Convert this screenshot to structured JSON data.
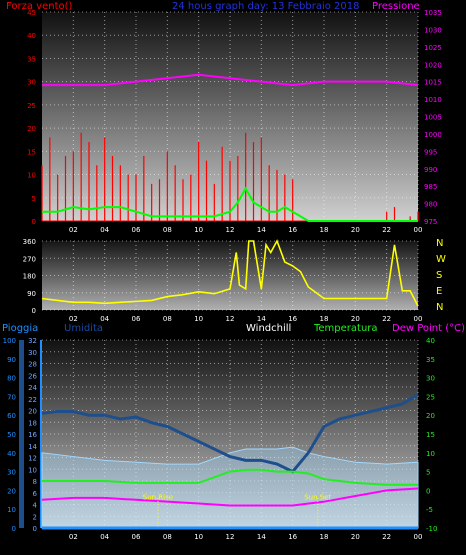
{
  "header": {
    "left_label": "Forza vento()",
    "title": "24 hous graph day: 13 Febbraio 2018",
    "right_label": "Pressione"
  },
  "dir_panel": {
    "compass": [
      "N",
      "W",
      "S",
      "E",
      "N"
    ]
  },
  "bottom_header": {
    "pioggia": "Pioggia",
    "umidita": "Umidita",
    "windchill": "Windchill",
    "temperatura": "Temperatura",
    "dewpoint": "Dew Point (°C)"
  },
  "annotations": {
    "sunrise": "Sun Rise",
    "sunset": "Sun Set"
  },
  "colors": {
    "wind_gust": "#ff0000",
    "wind_avg": "#00ff00",
    "pressure": "#ff00ff",
    "direction": "#ffff00",
    "windchill": "#1e4e8c",
    "temperature": "#22ee22",
    "humidity": "#a0d8ff",
    "dewpoint": "#ff00ff",
    "rain": "#1e90ff"
  },
  "chart_data": [
    {
      "type": "line",
      "title": "24 hous graph day: 13 Febbraio 2018",
      "x_ticks": [
        "02",
        "04",
        "06",
        "08",
        "10",
        "12",
        "14",
        "16",
        "18",
        "20",
        "22",
        "00"
      ],
      "y_left": {
        "label": "Forza vento()",
        "ticks": [
          0,
          5,
          10,
          15,
          20,
          25,
          30,
          35,
          40,
          45
        ],
        "lim": [
          0,
          45
        ]
      },
      "y_right": {
        "label": "Pressione",
        "ticks": [
          975,
          980,
          985,
          990,
          995,
          1000,
          1005,
          1010,
          1015,
          1020,
          1025,
          1030,
          1035
        ],
        "lim": [
          975,
          1035
        ]
      },
      "grid": true,
      "series": [
        {
          "name": "gust",
          "axis": "left",
          "style": "bars",
          "x": [
            0,
            0.5,
            1,
            1.5,
            2,
            2.5,
            3,
            3.5,
            4,
            4.5,
            5,
            5.5,
            6,
            6.5,
            7,
            7.5,
            8,
            8.5,
            9,
            9.5,
            10,
            10.5,
            11,
            11.5,
            12,
            12.5,
            13,
            13.5,
            14,
            14.5,
            15,
            15.5,
            16,
            16.5,
            17,
            18,
            19,
            20,
            21,
            22,
            22.5,
            23,
            23.5,
            24
          ],
          "values": [
            12,
            18,
            10,
            14,
            15,
            19,
            17,
            12,
            18,
            14,
            12,
            10,
            10,
            14,
            8,
            9,
            15,
            12,
            9,
            10,
            17,
            13,
            8,
            16,
            13,
            14,
            19,
            17,
            18,
            12,
            11,
            10,
            9,
            0,
            0,
            0,
            0,
            0,
            0,
            2,
            3,
            0,
            1,
            2
          ]
        },
        {
          "name": "avg",
          "axis": "left",
          "style": "line",
          "x": [
            0,
            1,
            2,
            3,
            4,
            5,
            6,
            7,
            8,
            9,
            10,
            11,
            12,
            12.5,
            13,
            13.5,
            14,
            14.5,
            15,
            15.5,
            16,
            17,
            18,
            19,
            20,
            21,
            22,
            23,
            24
          ],
          "values": [
            2,
            2,
            3,
            2.5,
            3,
            3,
            2,
            1,
            1,
            1,
            1,
            1,
            2,
            4,
            7,
            4,
            3,
            2,
            2,
            3,
            2,
            0,
            0,
            0,
            0,
            0,
            0,
            0,
            0
          ]
        },
        {
          "name": "pressure",
          "axis": "right",
          "style": "line",
          "x": [
            0,
            2,
            4,
            6,
            8,
            10,
            12,
            14,
            16,
            18,
            20,
            22,
            24
          ],
          "values": [
            1014,
            1014,
            1014,
            1015,
            1016,
            1017,
            1016,
            1015,
            1014,
            1015,
            1015,
            1015,
            1014
          ]
        }
      ]
    },
    {
      "type": "line",
      "x_ticks": [
        "02",
        "04",
        "06",
        "08",
        "10",
        "12",
        "14",
        "16",
        "18",
        "20",
        "22",
        "00"
      ],
      "y_left": {
        "ticks": [
          0,
          90,
          180,
          270,
          360
        ],
        "lim": [
          0,
          360
        ]
      },
      "y_right_labels": [
        "N",
        "W",
        "S",
        "E",
        "N"
      ],
      "grid": true,
      "series": [
        {
          "name": "direction",
          "axis": "left",
          "x": [
            0,
            1,
            2,
            3,
            4,
            5,
            6,
            7,
            8,
            9,
            10,
            11,
            12,
            12.4,
            12.6,
            13,
            13.2,
            13.5,
            14,
            14.3,
            14.6,
            15,
            15.5,
            16,
            16.5,
            17,
            18,
            19,
            20,
            21,
            22,
            22.5,
            23,
            23.5,
            24
          ],
          "values": [
            60,
            50,
            40,
            40,
            35,
            40,
            45,
            50,
            70,
            80,
            95,
            85,
            110,
            300,
            130,
            110,
            360,
            360,
            110,
            340,
            300,
            360,
            250,
            230,
            200,
            120,
            60,
            60,
            60,
            60,
            60,
            340,
            100,
            100,
            20
          ]
        }
      ]
    },
    {
      "type": "line",
      "x_ticks": [
        "02",
        "04",
        "06",
        "08",
        "10",
        "12",
        "14",
        "16",
        "18",
        "20",
        "22",
        "00"
      ],
      "y_left": {
        "label": "Pioggia",
        "ticks": [
          0,
          2,
          4,
          6,
          8,
          10,
          12,
          14,
          16,
          18,
          20,
          22,
          24,
          26,
          28,
          30,
          32
        ],
        "lim": [
          0,
          32
        ]
      },
      "y_left_outer": {
        "label": "Umidita",
        "ticks": [
          0,
          10,
          20,
          30,
          40,
          50,
          60,
          70,
          80,
          90,
          100
        ],
        "lim": [
          0,
          100
        ]
      },
      "y_right": {
        "label": "Dew Point (°C)",
        "ticks": [
          -10,
          -5,
          0,
          5,
          10,
          15,
          20,
          25,
          30,
          35,
          40
        ],
        "lim": [
          -10,
          40
        ]
      },
      "grid": true,
      "series": [
        {
          "name": "Umidita",
          "axis": "left_outer",
          "style": "area",
          "x": [
            0,
            2,
            4,
            6,
            8,
            10,
            12,
            13,
            14,
            15,
            16,
            17,
            18,
            20,
            22,
            24
          ],
          "values": [
            40,
            38,
            36,
            35,
            34,
            34,
            40,
            42,
            42,
            42,
            43,
            40,
            38,
            35,
            34,
            35
          ]
        },
        {
          "name": "Windchill",
          "axis": "right",
          "x": [
            0,
            1,
            2,
            3,
            4,
            5,
            6,
            7,
            8,
            9,
            10,
            11,
            12,
            13,
            14,
            15,
            16,
            17,
            18,
            19,
            20,
            21,
            22,
            23,
            24
          ],
          "values": [
            20.5,
            21,
            21,
            20,
            20,
            19,
            19.5,
            18,
            17,
            15,
            13,
            11,
            9,
            8,
            8,
            7,
            5,
            10,
            17,
            19,
            20,
            21,
            22,
            23,
            25.5
          ]
        },
        {
          "name": "Temperatura",
          "axis": "right",
          "x": [
            0,
            2,
            4,
            6,
            8,
            10,
            12,
            13,
            14,
            15,
            16,
            17,
            18,
            20,
            22,
            24
          ],
          "values": [
            2.5,
            2.5,
            2.5,
            2,
            2,
            2,
            5,
            5.5,
            5.5,
            5,
            5,
            4.5,
            3,
            2,
            1.5,
            1.5
          ]
        },
        {
          "name": "Dew Point",
          "axis": "right",
          "x": [
            0,
            2,
            4,
            6,
            8,
            10,
            12,
            14,
            16,
            18,
            20,
            22,
            24
          ],
          "values": [
            -2.5,
            -2,
            -2,
            -2.5,
            -3,
            -3.5,
            -4,
            -4,
            -4,
            -3,
            -1.5,
            0,
            0.5
          ]
        },
        {
          "name": "Pioggia",
          "axis": "left",
          "x": [
            0,
            24
          ],
          "values": [
            0,
            0
          ]
        }
      ],
      "sun": {
        "rise": 7.4,
        "set": 17.6
      }
    }
  ]
}
